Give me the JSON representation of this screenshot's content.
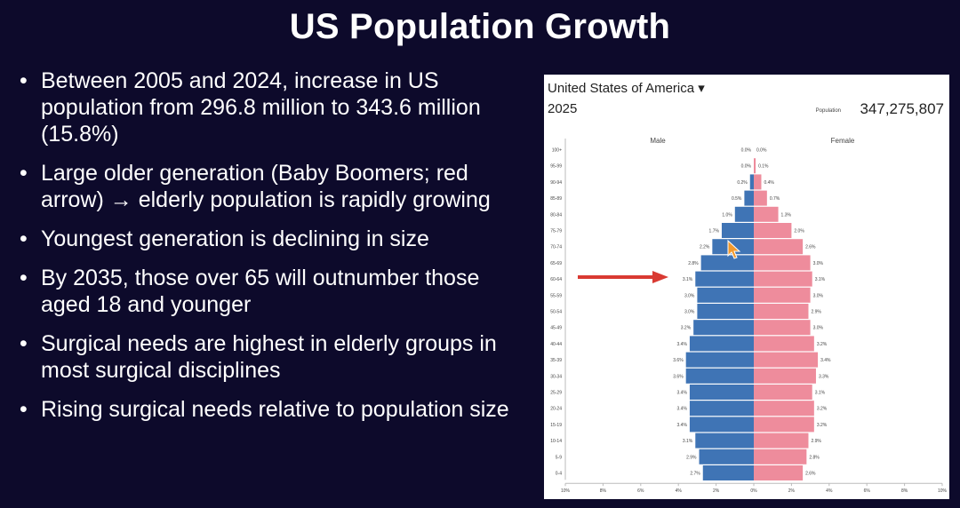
{
  "slide": {
    "title": "US Population Growth",
    "bullets": [
      "Between 2005 and 2024, increase in US population from 296.8 million to 343.6 million (15.8%)",
      "Large older generation (Baby Boomers; red arrow) → elderly population is rapidly growing",
      "Youngest generation is declining in size",
      "By 2035, those over 65 will outnumber those aged 18 and younger",
      "Surgical needs are highest in elderly groups in most surgical disciplines",
      "Rising surgical needs relative to population size"
    ]
  },
  "panel": {
    "country": "United States of America",
    "dropdown_icon": "▾",
    "year": "2025",
    "population_label": "Population",
    "population_value": "347,275,807"
  },
  "colors": {
    "background": "#0d0a2b",
    "male": "#3f74b5",
    "female": "#ee8c9c",
    "arrow": "#d93a32"
  },
  "chart_data": {
    "type": "bar",
    "orientation": "population-pyramid",
    "series_names": [
      "Male",
      "Female"
    ],
    "categories": [
      "100+",
      "95-99",
      "90-94",
      "85-89",
      "80-84",
      "75-79",
      "70-74",
      "65-69",
      "60-64",
      "55-59",
      "50-54",
      "45-49",
      "40-44",
      "35-39",
      "30-34",
      "25-29",
      "20-24",
      "15-19",
      "10-14",
      "5-9",
      "0-4"
    ],
    "male": [
      0.0,
      0.0,
      0.2,
      0.5,
      1.0,
      1.7,
      2.2,
      2.8,
      3.1,
      3.0,
      3.0,
      3.2,
      3.4,
      3.6,
      3.6,
      3.4,
      3.4,
      3.4,
      3.1,
      2.9,
      2.7
    ],
    "female": [
      0.0,
      0.1,
      0.4,
      0.7,
      1.3,
      2.0,
      2.6,
      3.0,
      3.1,
      3.0,
      2.9,
      3.0,
      3.2,
      3.4,
      3.3,
      3.1,
      3.2,
      3.2,
      2.9,
      2.8,
      2.6
    ],
    "male_labels": [
      "0.0%",
      "0.0%",
      "0.2%",
      "0.5%",
      "1.0%",
      "1.7%",
      "2.2%",
      "2.8%",
      "3.1%",
      "3.0%",
      "3.0%",
      "3.2%",
      "3.4%",
      "3.6%",
      "3.6%",
      "3.4%",
      "3.4%",
      "3.4%",
      "3.1%",
      "2.9%",
      "2.7%"
    ],
    "female_labels": [
      "0.0%",
      "0.1%",
      "0.4%",
      "0.7%",
      "1.3%",
      "2.0%",
      "2.6%",
      "3.0%",
      "3.1%",
      "3.0%",
      "2.9%",
      "3.0%",
      "3.2%",
      "3.4%",
      "3.3%",
      "3.1%",
      "3.2%",
      "3.2%",
      "2.9%",
      "2.8%",
      "2.6%"
    ],
    "xticks": [
      "10%",
      "8%",
      "6%",
      "4%",
      "2%",
      "0%",
      "2%",
      "4%",
      "6%",
      "8%",
      "10%"
    ],
    "xlim": [
      -10,
      10
    ],
    "highlight_category": "60-64"
  }
}
